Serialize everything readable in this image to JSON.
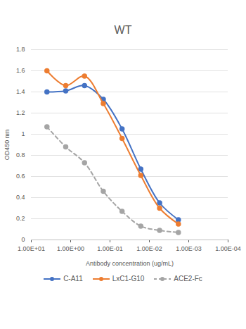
{
  "chart_data": {
    "type": "line",
    "title": "WT",
    "x_label": "Antibody concentration (ug/mL)",
    "y_label": "OD450 nm",
    "x": [
      4,
      1.333,
      0.444,
      0.148,
      0.0494,
      0.0165,
      0.00549,
      0.00183
    ],
    "series": [
      {
        "name": "C-A11",
        "color": "#4472c4",
        "marker": "circle",
        "line_style": "solid",
        "values": [
          1.4,
          1.41,
          1.46,
          1.33,
          1.05,
          0.67,
          0.35,
          0.19
        ]
      },
      {
        "name": "LxC1-G10",
        "color": "#ed7d31",
        "marker": "circle",
        "line_style": "solid",
        "values": [
          1.6,
          1.46,
          1.55,
          1.29,
          0.96,
          0.61,
          0.3,
          0.15
        ]
      },
      {
        "name": "ACE2-Fc",
        "color": "#a5a5a5",
        "marker": "circle",
        "line_style": "dashed",
        "values": [
          1.07,
          0.88,
          0.73,
          0.46,
          0.27,
          0.13,
          0.09,
          0.07
        ]
      }
    ],
    "log": "x",
    "xlim": [
      10,
      0.0001
    ],
    "xticks": [
      {
        "value": 10,
        "label": "1.00E+01"
      },
      {
        "value": 1,
        "label": "1.00E+00"
      },
      {
        "value": 0.1,
        "label": "1.00E-01"
      },
      {
        "value": 0.01,
        "label": "1.00E-02"
      },
      {
        "value": 0.001,
        "label": "1.00E-03"
      },
      {
        "value": 0.0001,
        "label": "1.00E-04"
      }
    ],
    "ylim": [
      0,
      1.8
    ],
    "yticks": [
      0,
      0.2,
      0.4,
      0.6,
      0.8,
      1,
      1.2,
      1.4,
      1.6,
      1.8
    ],
    "grid": true,
    "legend": "bottom"
  }
}
